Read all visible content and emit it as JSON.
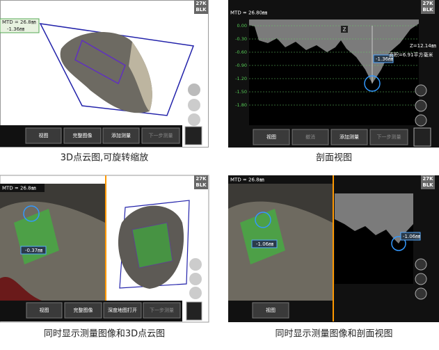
{
  "panels": [
    {
      "mtd": "MTD = 26.8㎜",
      "badge": [
        "27K",
        "BLK"
      ],
      "measure": "-1.36㎜",
      "buttons": [
        "视图",
        "完整图像",
        "添加测量",
        "下一步测量"
      ],
      "caption": "3D点云图,可旋转缩放"
    },
    {
      "mtd": "MTD = 26.80㎜",
      "badge": [
        "27K",
        "BLK"
      ],
      "measure": "-1.36㎜",
      "axis_labels": [
        "0.00",
        "-0.30",
        "-0.60",
        "-0.90",
        "-1.20",
        "-1.50",
        "-1.80"
      ],
      "axis_name": "Z",
      "z_value": "Z=12.14㎜",
      "area": "面积=6.91平方毫米",
      "buttons": [
        "视图",
        "撤消",
        "添加测量",
        "下一步测量"
      ],
      "caption": "剖面视图"
    },
    {
      "mtd": "MTD = 26.8㎜",
      "badge": [
        "27K",
        "BLK"
      ],
      "measure": "-0.37㎜",
      "buttons": [
        "视图",
        "完整图像",
        "深度地图打开",
        "下一步测量"
      ],
      "caption": "同时显示测量图像和3D点云图"
    },
    {
      "mtd": "MTD = 26.8㎜",
      "badge": [
        "27K",
        "BLK"
      ],
      "measure": "-1.06㎜",
      "buttons": [
        "视图"
      ],
      "caption": "同时显示测量图像和剖面视图"
    }
  ]
}
